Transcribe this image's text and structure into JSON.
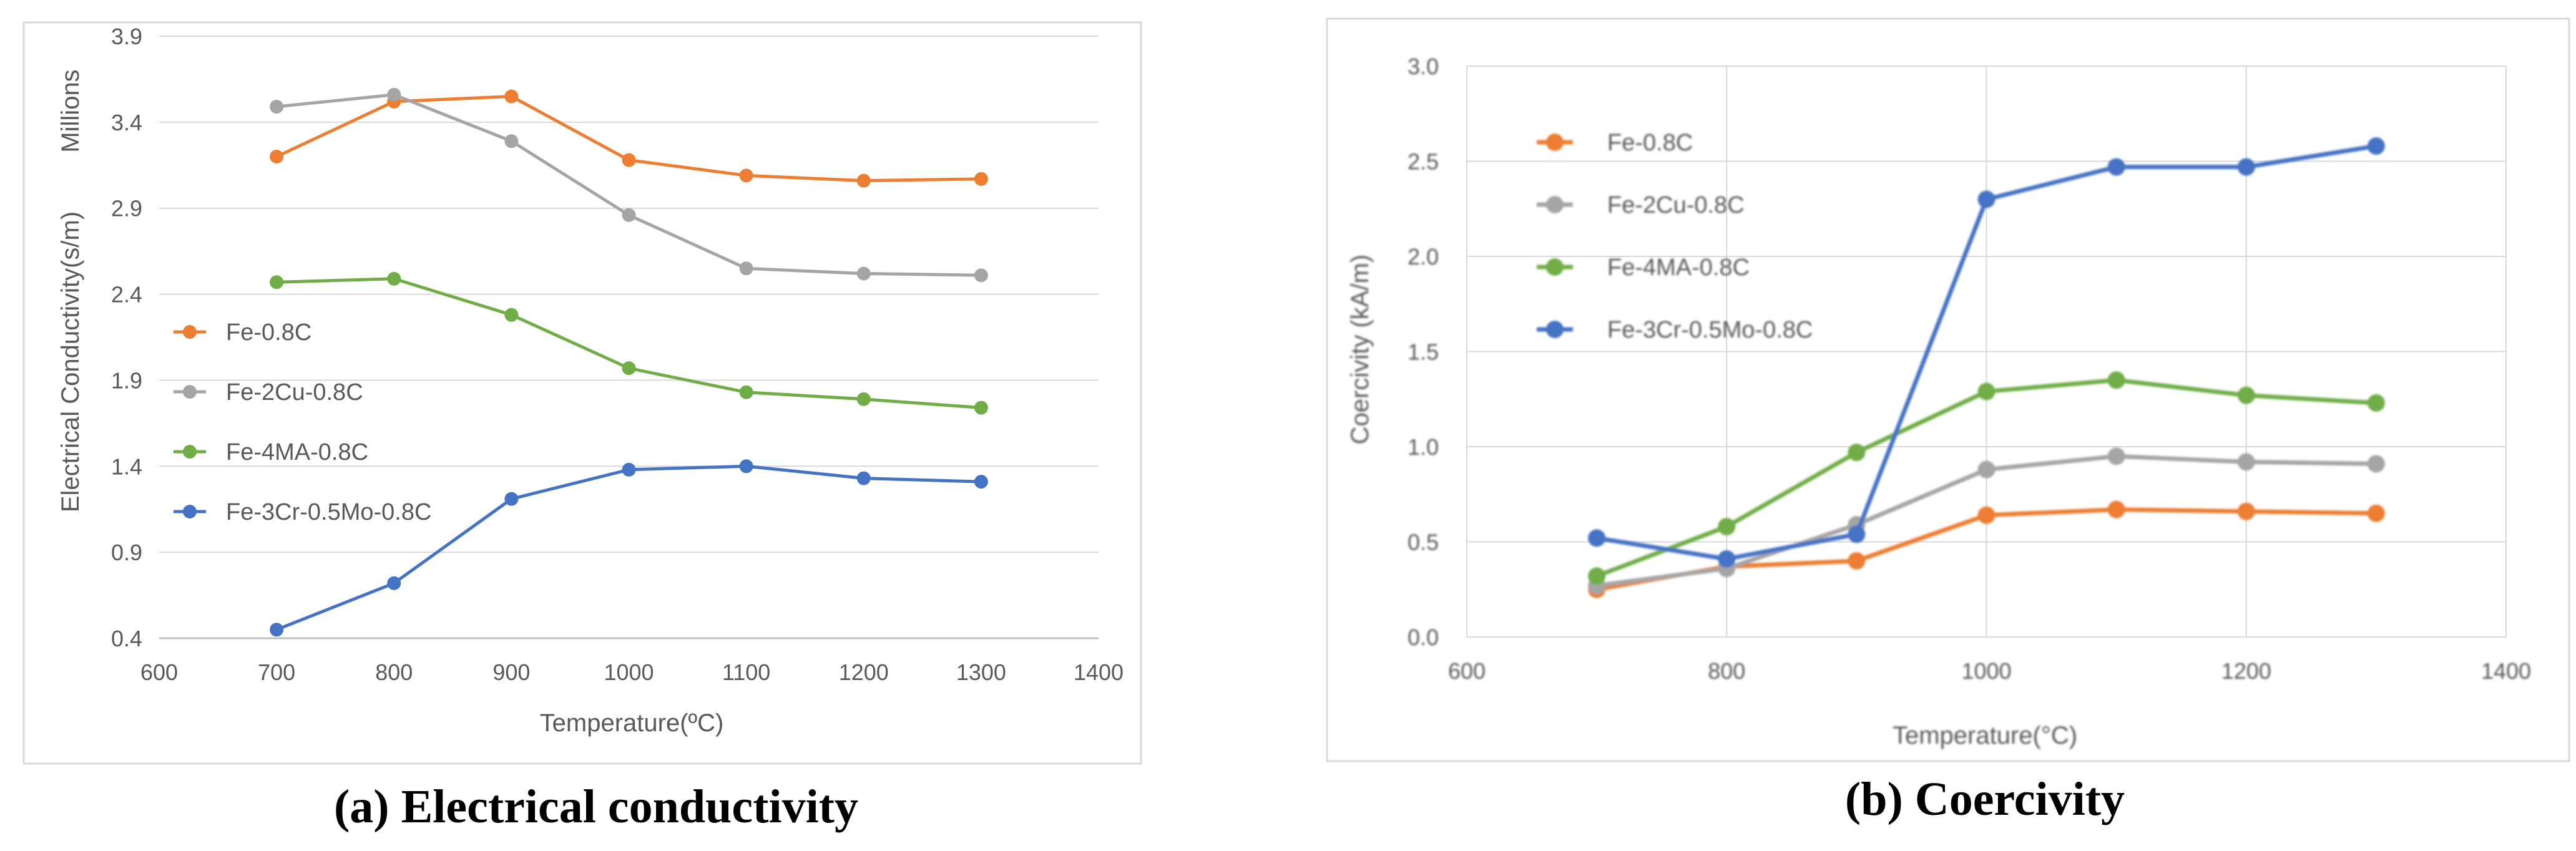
{
  "chart_data": [
    {
      "id": "a",
      "type": "line",
      "caption": "(a) Electrical conductivity",
      "xlabel": "Temperature(ºC)",
      "ylabel": "Electrical Conductivity(s/m)",
      "yunit": "Millions",
      "xlim": [
        600,
        1400
      ],
      "ylim": [
        0.4,
        3.9
      ],
      "xticks": [
        600,
        700,
        800,
        900,
        1000,
        1100,
        1200,
        1300,
        1400
      ],
      "yticks": [
        "0.4",
        "0.9",
        "1.4",
        "1.9",
        "2.4",
        "2.9",
        "3.4",
        "3.9"
      ],
      "legend_position": "left",
      "x": [
        700,
        800,
        900,
        1000,
        1100,
        1200,
        1300
      ],
      "series": [
        {
          "name": "Fe-0.8C",
          "color": "#ED7D31",
          "values": [
            3.2,
            3.52,
            3.55,
            3.18,
            3.09,
            3.06,
            3.07
          ]
        },
        {
          "name": "Fe-2Cu-0.8C",
          "color": "#A5A5A5",
          "values": [
            3.49,
            3.56,
            3.29,
            2.86,
            2.55,
            2.52,
            2.51
          ]
        },
        {
          "name": "Fe-4MA-0.8C",
          "color": "#70AD47",
          "values": [
            2.47,
            2.49,
            2.28,
            1.97,
            1.83,
            1.79,
            1.74
          ]
        },
        {
          "name": "Fe-3Cr-0.5Mo-0.8C",
          "color": "#4472C4",
          "values": [
            0.45,
            0.72,
            1.21,
            1.38,
            1.4,
            1.33,
            1.31
          ]
        }
      ]
    },
    {
      "id": "b",
      "type": "line",
      "caption": "(b) Coercivity",
      "xlabel": "Temperature(°C)",
      "ylabel": "Coercivity (kA/m)",
      "xlim": [
        600,
        1400
      ],
      "ylim": [
        0.0,
        3.0
      ],
      "xticks": [
        600,
        800,
        1000,
        1200,
        1400
      ],
      "yticks": [
        "0.0",
        "0.5",
        "1.0",
        "1.5",
        "2.0",
        "2.5",
        "3.0"
      ],
      "legend_position": "top-left",
      "x": [
        700,
        800,
        900,
        1000,
        1100,
        1200,
        1300
      ],
      "series": [
        {
          "name": "Fe-0.8C",
          "color": "#ED7D31",
          "values": [
            0.25,
            0.37,
            0.4,
            0.64,
            0.67,
            0.66,
            0.65
          ]
        },
        {
          "name": "Fe-2Cu-0.8C",
          "color": "#A5A5A5",
          "values": [
            0.27,
            0.36,
            0.59,
            0.88,
            0.95,
            0.92,
            0.91
          ]
        },
        {
          "name": "Fe-4MA-0.8C",
          "color": "#70AD47",
          "values": [
            0.32,
            0.58,
            0.97,
            1.29,
            1.35,
            1.27,
            1.23
          ]
        },
        {
          "name": "Fe-3Cr-0.5Mo-0.8C",
          "color": "#4472C4",
          "values": [
            0.52,
            0.41,
            0.54,
            2.3,
            2.47,
            2.47,
            2.58
          ]
        }
      ]
    }
  ]
}
